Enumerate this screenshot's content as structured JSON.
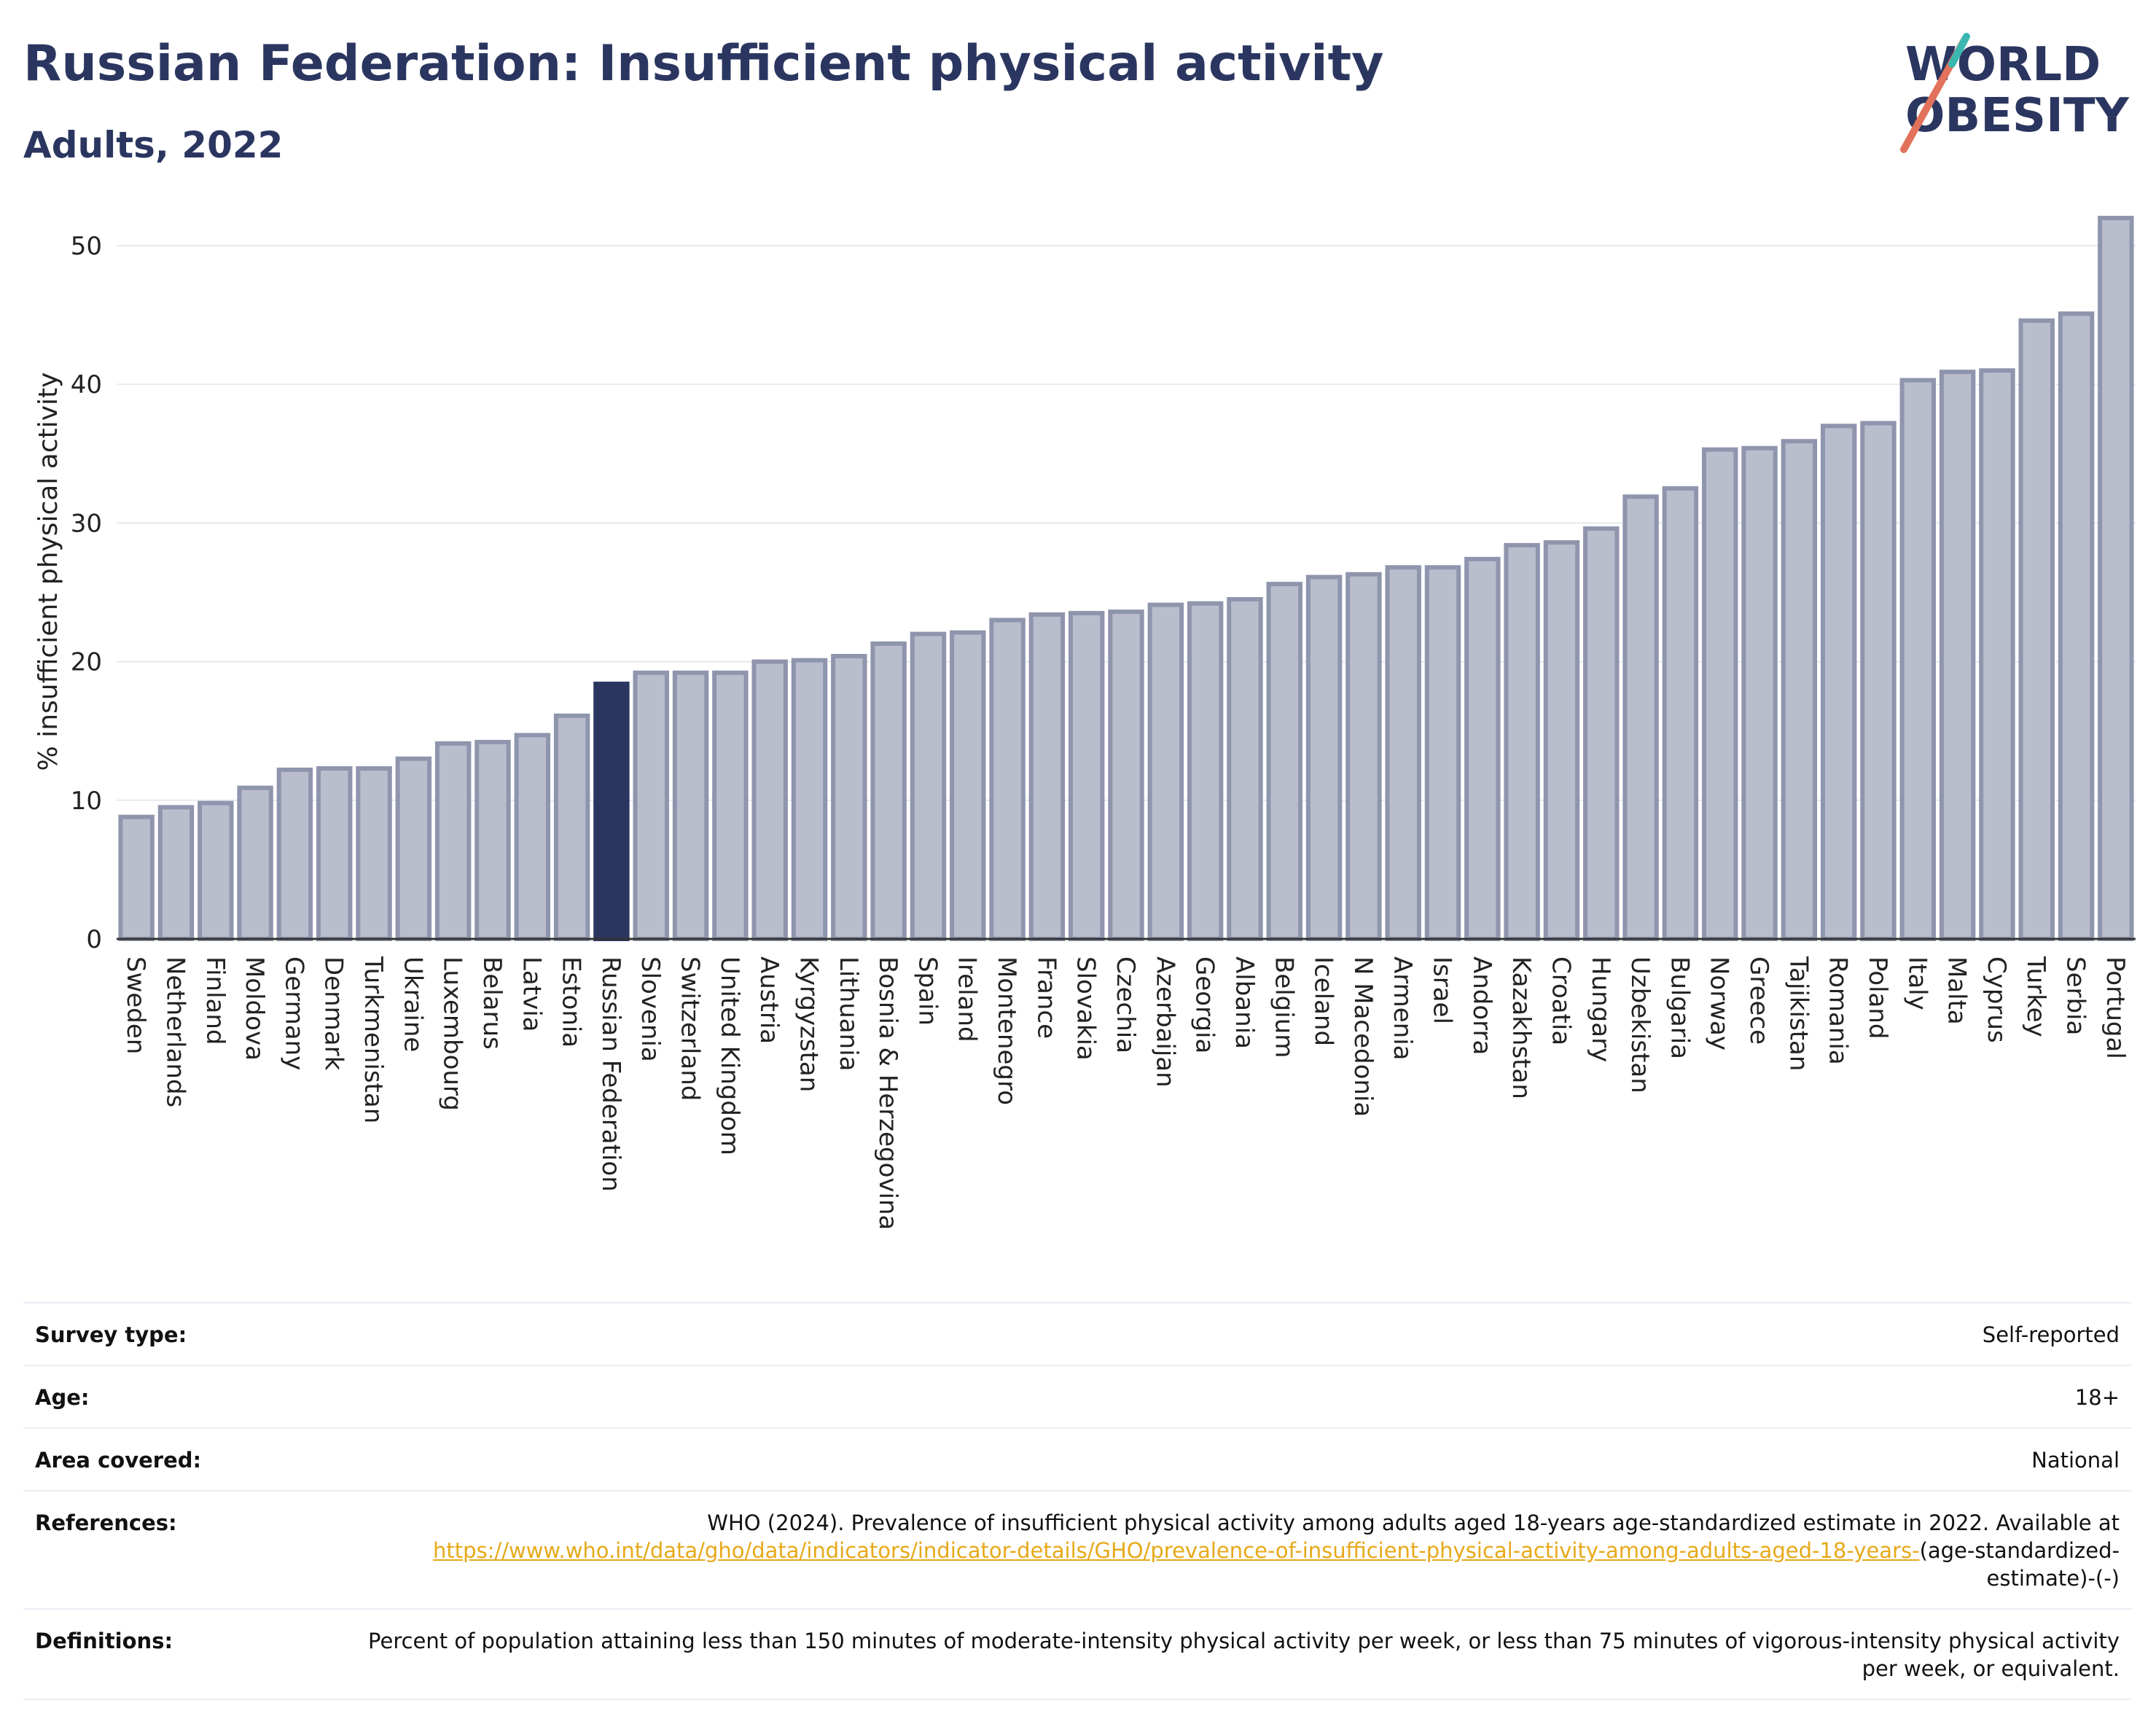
{
  "header": {
    "title": "Russian Federation: Insufficient physical activity",
    "subtitle": "Adults, 2022"
  },
  "logo": {
    "line1": "WORLD",
    "line2": "OBESITY",
    "accent_colors": [
      "#e2725b",
      "#3bb7b0"
    ]
  },
  "chart_data": {
    "type": "bar",
    "title": "Russian Federation: Insufficient physical activity",
    "subtitle": "Adults, 2022",
    "xlabel": "",
    "ylabel": "% insufficient physical activity",
    "ylim": [
      0,
      53
    ],
    "yticks": [
      0,
      10,
      20,
      30,
      40,
      50
    ],
    "grid": true,
    "highlight": "Russian Federation",
    "colors": {
      "bar": "#b9bdcc",
      "bar_edge": "#8f95ad",
      "highlight": "#2b3660"
    },
    "categories": [
      "Sweden",
      "Netherlands",
      "Finland",
      "Moldova",
      "Germany",
      "Denmark",
      "Turkmenistan",
      "Ukraine",
      "Luxembourg",
      "Belarus",
      "Latvia",
      "Estonia",
      "Russian Federation",
      "Slovenia",
      "Switzerland",
      "United Kingdom",
      "Austria",
      "Kyrgyzstan",
      "Lithuania",
      "Bosnia & Herzegovina",
      "Spain",
      "Ireland",
      "Montenegro",
      "France",
      "Slovakia",
      "Czechia",
      "Azerbaijan",
      "Georgia",
      "Albania",
      "Belgium",
      "Iceland",
      "N Macedonia",
      "Armenia",
      "Israel",
      "Andorra",
      "Kazakhstan",
      "Croatia",
      "Hungary",
      "Uzbekistan",
      "Bulgaria",
      "Norway",
      "Greece",
      "Tajikistan",
      "Romania",
      "Poland",
      "Italy",
      "Malta",
      "Cyprus",
      "Turkey",
      "Serbia",
      "Portugal"
    ],
    "values": [
      8.8,
      9.5,
      9.8,
      10.9,
      12.2,
      12.3,
      12.3,
      13.0,
      14.1,
      14.2,
      14.7,
      16.1,
      18.4,
      19.2,
      19.2,
      19.2,
      20.0,
      20.1,
      20.4,
      21.3,
      22.0,
      22.1,
      23.0,
      23.4,
      23.5,
      23.6,
      24.1,
      24.2,
      24.5,
      25.6,
      26.1,
      26.3,
      26.8,
      26.8,
      27.4,
      28.4,
      28.6,
      29.6,
      31.9,
      32.5,
      35.3,
      35.4,
      35.9,
      37.0,
      37.2,
      40.3,
      40.9,
      41.0,
      44.6,
      45.1,
      52.0
    ]
  },
  "info": {
    "survey_type": {
      "label": "Survey type:",
      "value": "Self-reported"
    },
    "age": {
      "label": "Age:",
      "value": "18+"
    },
    "area": {
      "label": "Area covered:",
      "value": "National"
    },
    "references": {
      "label": "References:",
      "text": "WHO (2024). Prevalence of insufficient physical activity among adults aged 18-years age-standardized estimate in 2022. Available at",
      "link": "https://www.who.int/data/gho/data/indicators/indicator-details/GHO/prevalence-of-insufficient-physical-activity-among-adults-aged-18-years-",
      "suffix": "(age-standardized-estimate)-(-)"
    },
    "definitions": {
      "label": "Definitions:",
      "value": "Percent of population attaining less than 150 minutes of moderate-intensity physical activity per week, or less than 75 minutes of vigorous-intensity physical activity per week, or equivalent."
    }
  }
}
